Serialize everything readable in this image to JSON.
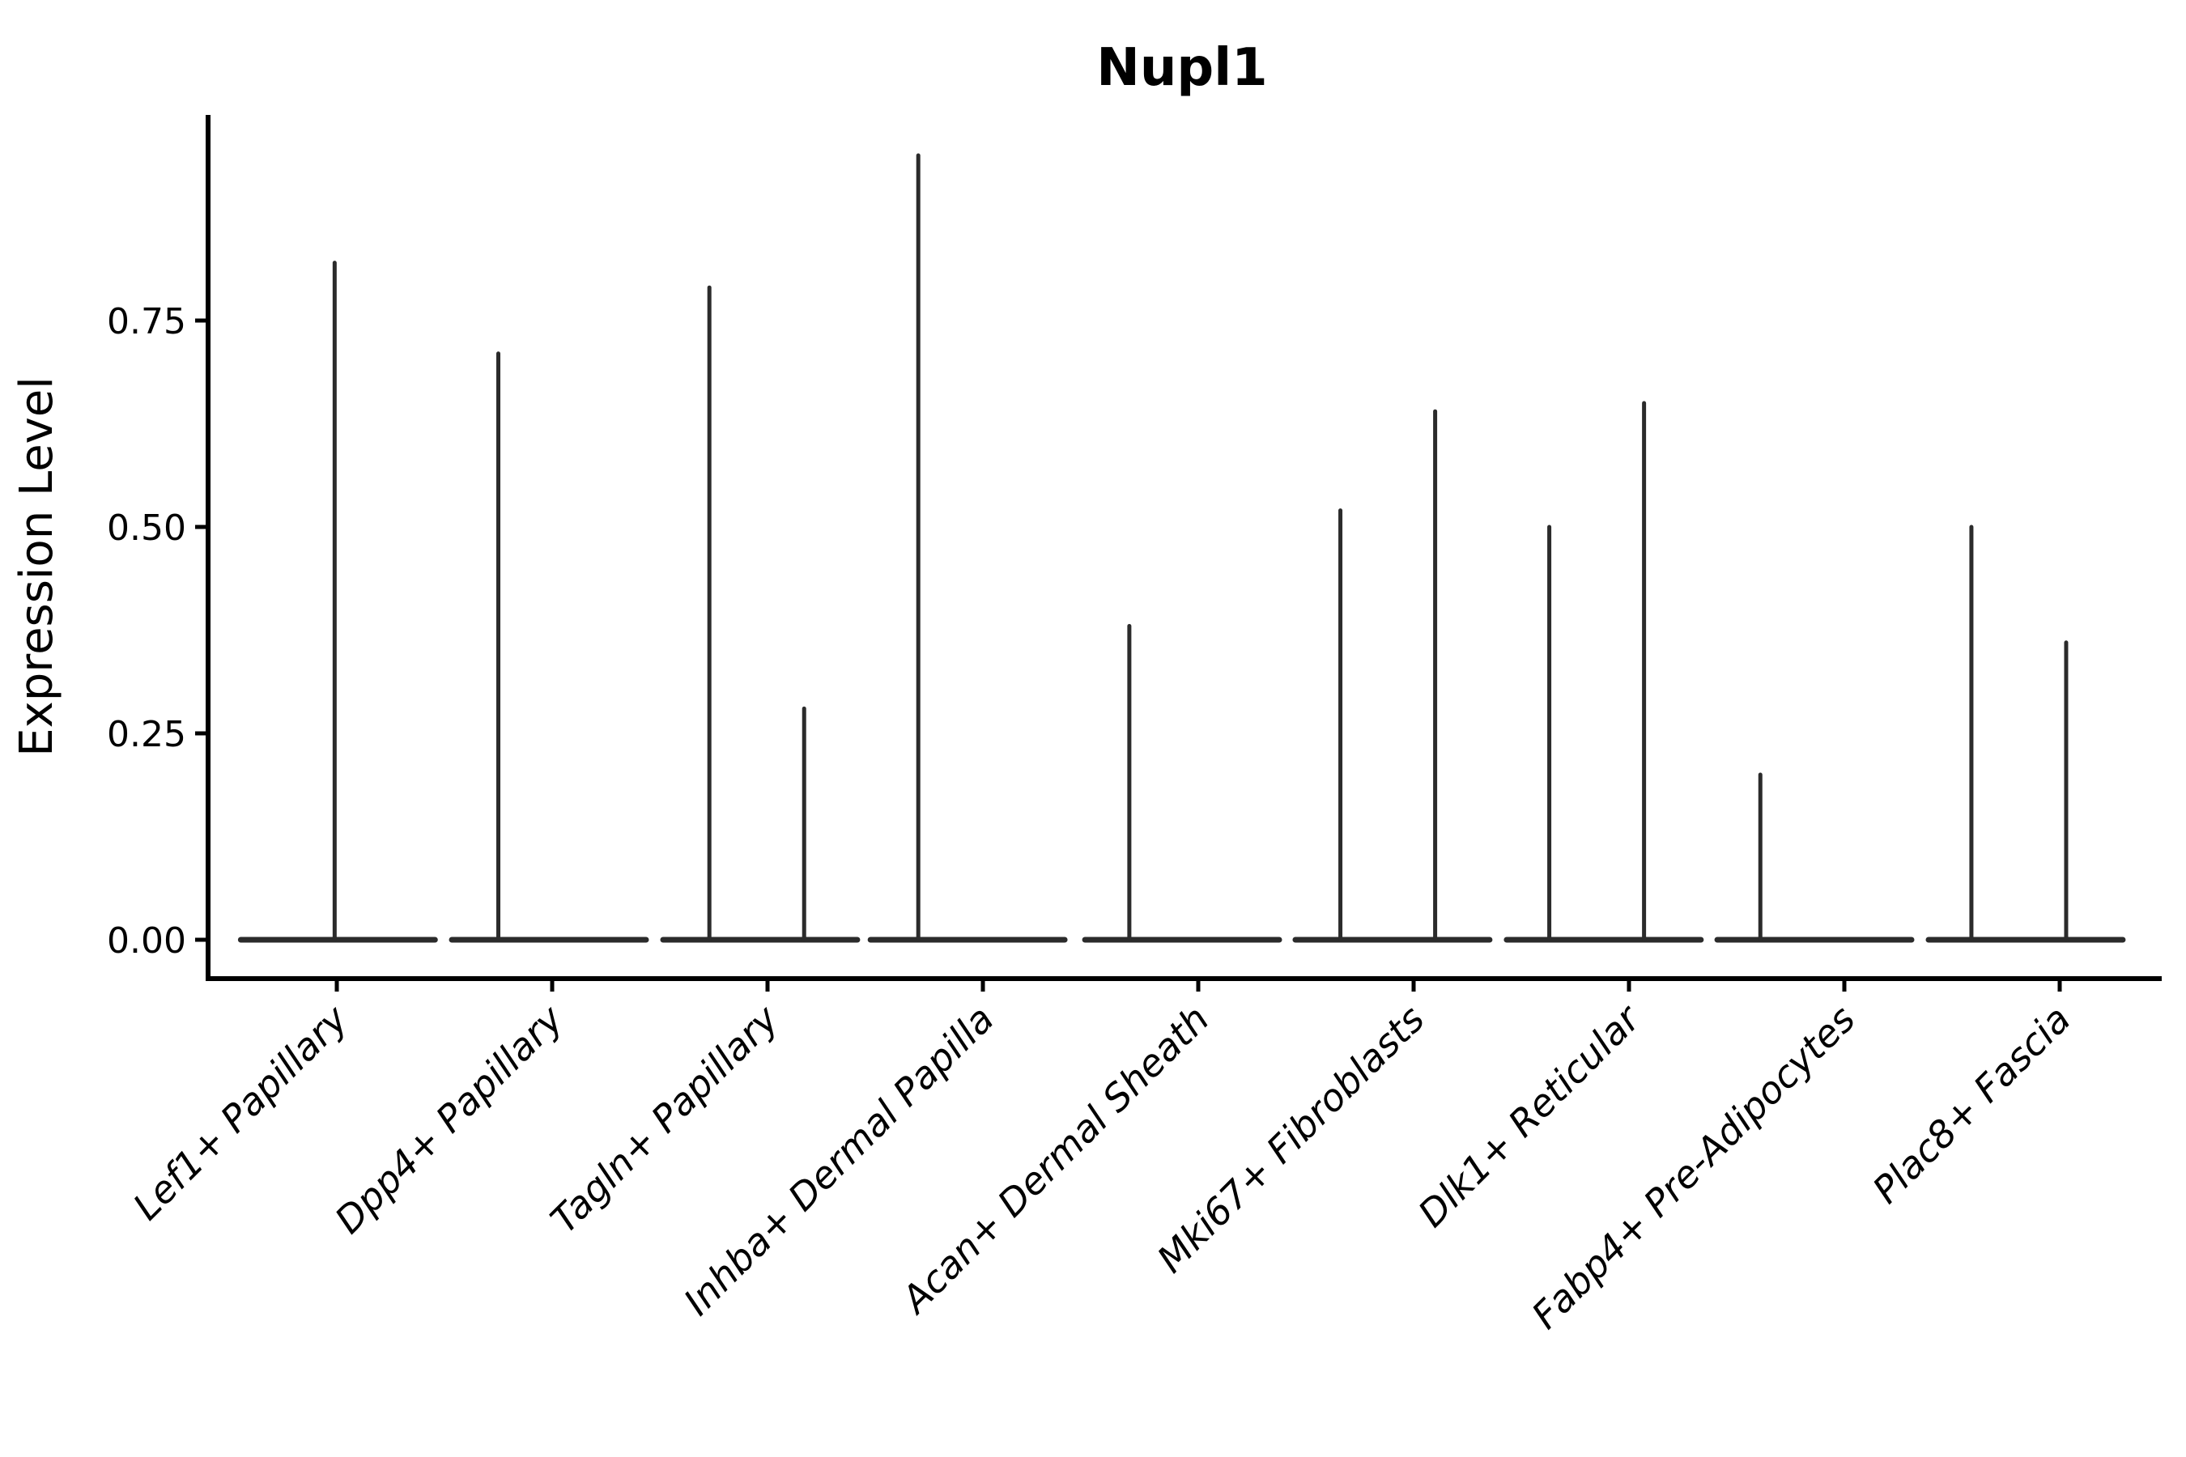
{
  "figure": {
    "background": "#ffffff"
  },
  "chart_data": {
    "type": "violin",
    "title": "Nupl1",
    "xlabel": "",
    "ylabel": "Expression Level",
    "ylim": [
      0,
      1.0
    ],
    "yticks": [
      0.0,
      0.25,
      0.5,
      0.75
    ],
    "ytick_labels": [
      "0.00",
      "0.25",
      "0.50",
      "0.75"
    ],
    "grid": false,
    "legend": "none",
    "axis_color": "#000000",
    "violin_color": "#2b2b2b",
    "baseline_value": 0.0,
    "baseline_halfwidth": 0.451,
    "categories": [
      {
        "label": "Lef1+ Papillary",
        "baseline_dx": 0.005,
        "spikes": [
          {
            "dx": -0.01,
            "value": 0.82
          }
        ]
      },
      {
        "label": "Dpp4+ Papillary",
        "baseline_dx": -0.015,
        "spikes": [
          {
            "dx": -0.25,
            "value": 0.71
          }
        ]
      },
      {
        "label": "Tagln+ Papillary",
        "baseline_dx": -0.034,
        "spikes": [
          {
            "dx": -0.27,
            "value": 0.79
          },
          {
            "dx": 0.17,
            "value": 0.28
          }
        ]
      },
      {
        "label": "Inhba+ Dermal Papilla",
        "baseline_dx": -0.071,
        "spikes": [
          {
            "dx": -0.3,
            "value": 0.95
          }
        ]
      },
      {
        "label": "Acan+ Dermal Sheath",
        "baseline_dx": -0.075,
        "spikes": [
          {
            "dx": -0.32,
            "value": 0.38
          }
        ]
      },
      {
        "label": "Mki67+ Fibroblasts",
        "baseline_dx": -0.098,
        "spikes": [
          {
            "dx": -0.34,
            "value": 0.52
          },
          {
            "dx": 0.1,
            "value": 0.64
          }
        ]
      },
      {
        "label": "Dlk1+ Reticular",
        "baseline_dx": -0.117,
        "spikes": [
          {
            "dx": -0.37,
            "value": 0.5
          },
          {
            "dx": 0.07,
            "value": 0.65
          }
        ]
      },
      {
        "label": "Fabp4+ Pre-Adipocytes",
        "baseline_dx": -0.139,
        "spikes": [
          {
            "dx": -0.39,
            "value": 0.2
          }
        ]
      },
      {
        "label": "Plac8+ Fascia",
        "baseline_dx": -0.158,
        "spikes": [
          {
            "dx": -0.41,
            "value": 0.5
          },
          {
            "dx": 0.03,
            "value": 0.36
          }
        ]
      }
    ]
  }
}
